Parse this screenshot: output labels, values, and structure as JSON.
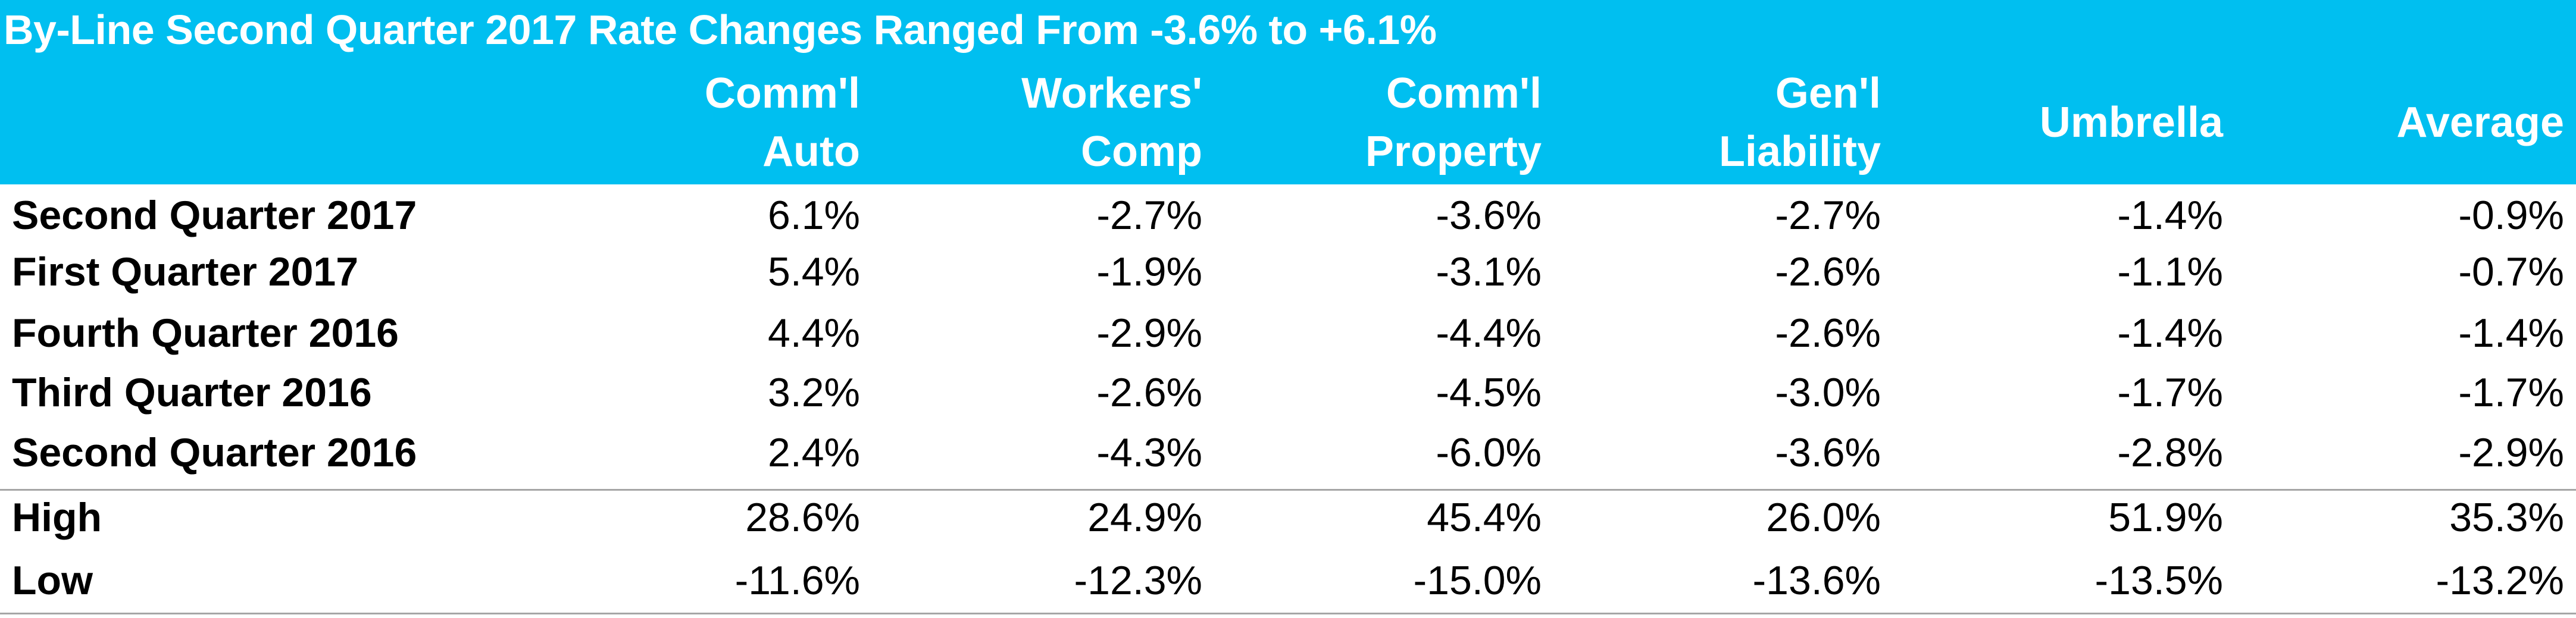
{
  "title": "By-Line Second Quarter 2017 Rate Changes Ranged From -3.6% to +6.1%",
  "colors": {
    "header_background": "#00bff0",
    "header_text": "#ffffff",
    "body_text": "#000000",
    "divider": "#a6a6a6"
  },
  "columns": [
    {
      "line1": "Comm'l",
      "line2": "Auto"
    },
    {
      "line1": "Workers'",
      "line2": "Comp"
    },
    {
      "line1": "Comm'l",
      "line2": "Property"
    },
    {
      "line1": "Gen'l",
      "line2": "Liability"
    },
    {
      "line1": "Umbrella",
      "line2": ""
    },
    {
      "line1": "Average",
      "line2": ""
    }
  ],
  "rows": [
    {
      "label": "Second Quarter 2017",
      "values": [
        "6.1%",
        "-2.7%",
        "-3.6%",
        "-2.7%",
        "-1.4%",
        "-0.9%"
      ]
    },
    {
      "label": "First Quarter 2017",
      "values": [
        "5.4%",
        "-1.9%",
        "-3.1%",
        "-2.6%",
        "-1.1%",
        "-0.7%"
      ]
    },
    {
      "label": "Fourth Quarter 2016",
      "values": [
        "4.4%",
        "-2.9%",
        "-4.4%",
        "-2.6%",
        "-1.4%",
        "-1.4%"
      ]
    },
    {
      "label": "Third Quarter 2016",
      "values": [
        "3.2%",
        "-2.6%",
        "-4.5%",
        "-3.0%",
        "-1.7%",
        "-1.7%"
      ]
    },
    {
      "label": "Second Quarter 2016",
      "values": [
        "2.4%",
        "-4.3%",
        "-6.0%",
        "-3.6%",
        "-2.8%",
        "-2.9%"
      ]
    }
  ],
  "summary_rows": [
    {
      "label": "High",
      "values": [
        "28.6%",
        "24.9%",
        "45.4%",
        "26.0%",
        "51.9%",
        "35.3%"
      ]
    },
    {
      "label": "Low",
      "values": [
        "-11.6%",
        "-12.3%",
        "-15.0%",
        "-13.6%",
        "-13.5%",
        "-13.2%"
      ]
    }
  ]
}
